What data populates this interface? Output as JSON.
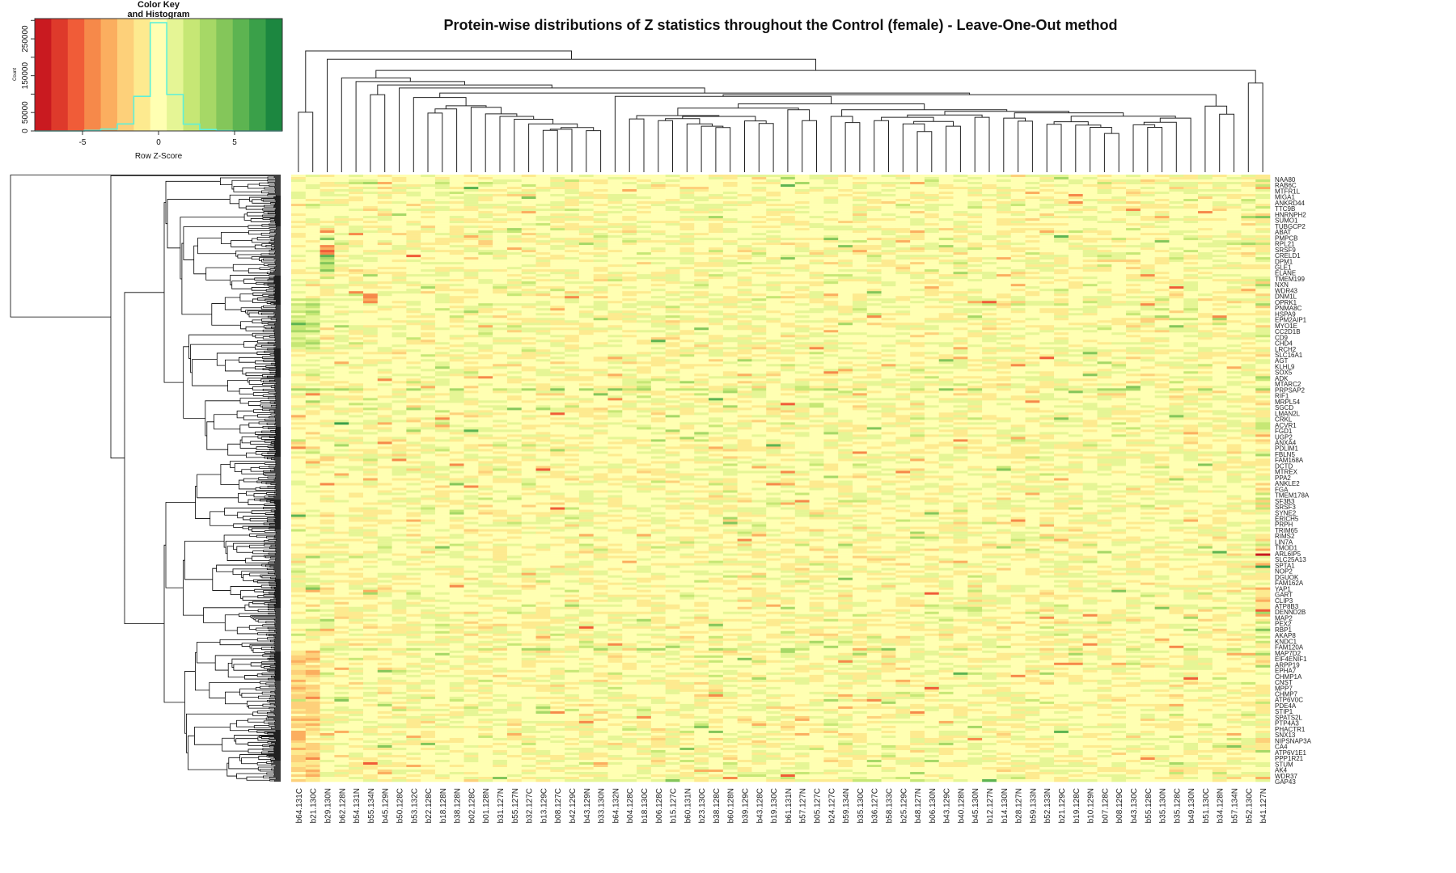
{
  "chart_data": {
    "type": "heatmap",
    "title": "Protein-wise distributions of Z statistics throughout the Control (female) - Leave-One-Out method",
    "columns": [
      "b64.131C",
      "b21.130C",
      "b29.130N",
      "b62.128N",
      "b54.131N",
      "b55.134N",
      "b45.129N",
      "b50.128C",
      "b53.132C",
      "b22.128C",
      "b18.128N",
      "b38.128N",
      "b02.128C",
      "b01.128N",
      "b31.127N",
      "b55.127N",
      "b32.127C",
      "b13.129C",
      "b08.127C",
      "b42.129C",
      "b43.129N",
      "b33.130N",
      "b64.132N",
      "b04.128C",
      "b18.130C",
      "b06.128C",
      "b15.127C",
      "b60.131N",
      "b23.130C",
      "b38.128C",
      "b60.128N",
      "b39.129C",
      "b43.128C",
      "b19.130C",
      "b61.131N",
      "b57.127N",
      "b05.127C",
      "b24.127C",
      "b59.134N",
      "b35.130C",
      "b36.127C",
      "b58.133C",
      "b25.129C",
      "b48.127N",
      "b06.130N",
      "b43.129C",
      "b40.128N",
      "b45.130N",
      "b12.127N",
      "b14.130N",
      "b28.127N",
      "b59.133N",
      "b52.133N",
      "b21.129C",
      "b19.128C",
      "b10.129N",
      "b07.128C",
      "b08.129C",
      "b43.130C",
      "b55.128C",
      "b35.130N",
      "b35.128C",
      "b49.130N",
      "b51.130C",
      "b34.128N",
      "b57.134N",
      "b52.130C",
      "b41.127N"
    ],
    "row_labels": [
      "NAA80",
      "RAB6C",
      "MTFR1L",
      "MIGA1",
      "ANKRD44",
      "TTC9B",
      "HNRNPH2",
      "SUMO1",
      "TUBGCP2",
      "ABAT",
      "PMPCB",
      "RPL21",
      "SRSF9",
      "CRELD1",
      "DPM1",
      "GLE1",
      "ELANE",
      "TMEM199",
      "NXN",
      "WDR43",
      "DNM1L",
      "OPRK1",
      "PNMA8C",
      "HSPA9",
      "EPM2AIP1",
      "MYO1E",
      "CC2D1B",
      "CD9",
      "CHD4",
      "LRCH2",
      "SLC16A1",
      "AGT",
      "KLHL9",
      "SOX5",
      "ADK",
      "MTARC2",
      "PRPSAP2",
      "RIF1",
      "MRPL54",
      "SGCD",
      "LMAN2L",
      "CRKL",
      "ACVR1",
      "FGD1",
      "UGP2",
      "ANXA4",
      "PDLIM1",
      "FBLN5",
      "FAM168A",
      "DCTD",
      "MTREX",
      "PPA2",
      "ANKLE2",
      "FGA",
      "TMEM178A",
      "SF3B3",
      "SRSF3",
      "SYNE2",
      "ERICH5",
      "PRPH",
      "TRIM65",
      "RIMS2",
      "LIN7A",
      "TMOD1",
      "ARL6IP5",
      "SLC25A13",
      "SPTA1",
      "NOP2",
      "DGUOK",
      "FAM162A",
      "YAP1",
      "GART",
      "CLIP3",
      "ATP8B3",
      "DENND2B",
      "MAP2",
      "PEX2",
      "RBP1",
      "AKAP8",
      "KNDC1",
      "FAM120A",
      "MAP7D2",
      "EIF4ENIF1",
      "ARPP19",
      "EPHA7",
      "CHMP1A",
      "CNST",
      "MPP7",
      "CHMP7",
      "ATP6V0C",
      "PDE4A",
      "STIP1",
      "SPATS2L",
      "PTP4A3",
      "PHACTR1",
      "SNX13",
      "NIPSNAP3A",
      "CA4",
      "ATP6V1E1",
      "PPP1R21",
      "STUM",
      "AK4",
      "WDR37",
      "GAP43"
    ],
    "row_dendrogram": true,
    "column_dendrogram": true,
    "color_key": {
      "title_line1": "Color Key",
      "title_line2": "and Histogram",
      "xlabel": "Row Z-Score",
      "ylabel": "Count",
      "xlim": [
        -8.14,
        8.14
      ],
      "xticks": [
        -5,
        0,
        5
      ],
      "xtick_labels": [
        "-5",
        "0",
        "5"
      ],
      "yticks": [
        0,
        50000,
        100000,
        150000,
        200000,
        250000,
        300000
      ],
      "ytick_labels": [
        "0",
        "50000",
        "",
        "150000",
        "",
        "250000",
        ""
      ],
      "ylim": [
        0,
        305000
      ],
      "bin_width": 1.085,
      "colors": [
        "#c91a20",
        "#de3a2b",
        "#f05c38",
        "#f6894a",
        "#fbae5f",
        "#fdd07a",
        "#fdea8f",
        "#ffffb2",
        "#e5f595",
        "#c6e775",
        "#a6d866",
        "#84c65a",
        "#5db451",
        "#3aa049",
        "#1c8740"
      ],
      "histogram_counts": [
        0,
        0,
        0,
        1500,
        5000,
        19000,
        94000,
        294000,
        99000,
        18500,
        4000,
        1000,
        0,
        0,
        0
      ],
      "histogram_color": "#5ff0d8"
    }
  }
}
